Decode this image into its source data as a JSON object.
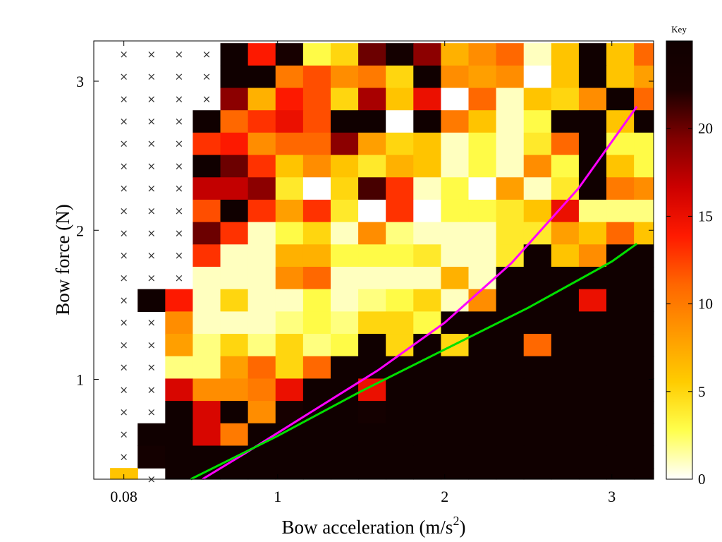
{
  "chart_data": {
    "type": "heatmap",
    "title": "",
    "xlabel_main": "Bow acceleration (m/s",
    "xlabel_sup": "2",
    "xlabel_close": ")",
    "ylabel": "Bow force (N)",
    "x_ticks": [
      {
        "value": 0.08,
        "label": "0.08"
      },
      {
        "value": 1,
        "label": "1"
      },
      {
        "value": 2,
        "label": "2"
      },
      {
        "value": 3,
        "label": "3"
      }
    ],
    "y_ticks": [
      {
        "value": 1,
        "label": "1"
      },
      {
        "value": 2,
        "label": "2"
      },
      {
        "value": 3,
        "label": "3"
      }
    ],
    "xlim": [
      -0.1,
      3.25
    ],
    "ylim": [
      0.33,
      3.27
    ],
    "x_centers": [
      0.08,
      0.245,
      0.41,
      0.575,
      0.74,
      0.905,
      1.07,
      1.235,
      1.4,
      1.565,
      1.73,
      1.895,
      2.06,
      2.225,
      2.39,
      2.555,
      2.72,
      2.885,
      3.05,
      3.215
    ],
    "y_centers": [
      3.18,
      3.03,
      2.88,
      2.73,
      2.58,
      2.43,
      2.28,
      2.13,
      1.98,
      1.83,
      1.68,
      1.53,
      1.38,
      1.23,
      1.08,
      0.93,
      0.78,
      0.63,
      0.48,
      0.33
    ],
    "values": [
      [
        null,
        null,
        null,
        null,
        25,
        14,
        23,
        3,
        5,
        20,
        24,
        19,
        7,
        9,
        11,
        1,
        6,
        25,
        6,
        11
      ],
      [
        null,
        null,
        null,
        null,
        25,
        25,
        10,
        12,
        9,
        10,
        5,
        25,
        9,
        8,
        9,
        0,
        6,
        25,
        6,
        8
      ],
      [
        null,
        null,
        null,
        null,
        19,
        7,
        14,
        12,
        5,
        18,
        6,
        15,
        0,
        11,
        1,
        6,
        5,
        9,
        25,
        11
      ],
      [
        null,
        null,
        null,
        25,
        11,
        13,
        15,
        12,
        25,
        25,
        0,
        25,
        10,
        6,
        1,
        3,
        25,
        25,
        6,
        25
      ],
      [
        null,
        null,
        null,
        13,
        14,
        9,
        11,
        11,
        19,
        8,
        5,
        6,
        1,
        3,
        1,
        4,
        11,
        25,
        3,
        3
      ],
      [
        null,
        null,
        null,
        25,
        20,
        13,
        6,
        9,
        6,
        4,
        7,
        6,
        1,
        3,
        1,
        9,
        3,
        25,
        6,
        3
      ],
      [
        null,
        null,
        null,
        17,
        17,
        19,
        4,
        0,
        5,
        21,
        13,
        1,
        3,
        0,
        8,
        1,
        4,
        25,
        10,
        9
      ],
      [
        null,
        null,
        null,
        12,
        25,
        13,
        8,
        13,
        4,
        0,
        13,
        0,
        3,
        3,
        4,
        6,
        15,
        2,
        2,
        2
      ],
      [
        null,
        null,
        null,
        20,
        13,
        1,
        3,
        5,
        1,
        9,
        2,
        1,
        1,
        1,
        4,
        4,
        8,
        6,
        11,
        6
      ],
      [
        null,
        null,
        null,
        13,
        1,
        1,
        7,
        7,
        3,
        3,
        3,
        4,
        1,
        1,
        4,
        25,
        6,
        9,
        25,
        25
      ],
      [
        null,
        null,
        null,
        1,
        1,
        1,
        9,
        11,
        1,
        1,
        1,
        1,
        7,
        1,
        25,
        25,
        25,
        25,
        25,
        25
      ],
      [
        null,
        25,
        14,
        1,
        5,
        1,
        1,
        3,
        1,
        2,
        3,
        5,
        1,
        9,
        25,
        25,
        25,
        15,
        25,
        25
      ],
      [
        null,
        null,
        9,
        1,
        1,
        1,
        2,
        3,
        2,
        5,
        5,
        3,
        25,
        25,
        25,
        25,
        25,
        25,
        25,
        25
      ],
      [
        null,
        null,
        8,
        2,
        5,
        2,
        5,
        2,
        3,
        25,
        5,
        25,
        5,
        25,
        25,
        11,
        25,
        25,
        25,
        25
      ],
      [
        null,
        null,
        2,
        2,
        8,
        11,
        5,
        11,
        25,
        25,
        25,
        25,
        25,
        25,
        25,
        25,
        25,
        25,
        25,
        25
      ],
      [
        null,
        null,
        16,
        9,
        9,
        10,
        15,
        25,
        25,
        15,
        25,
        25,
        25,
        25,
        25,
        25,
        25,
        25,
        25,
        25
      ],
      [
        null,
        null,
        25,
        16,
        25,
        9,
        23,
        25,
        25,
        24,
        25,
        25,
        25,
        25,
        25,
        25,
        25,
        25,
        25,
        25
      ],
      [
        null,
        25,
        25,
        16,
        10,
        25,
        25,
        25,
        25,
        25,
        25,
        25,
        25,
        25,
        25,
        25,
        25,
        25,
        25,
        25
      ],
      [
        null,
        24,
        25,
        25,
        25,
        25,
        25,
        25,
        25,
        25,
        25,
        25,
        25,
        25,
        25,
        25,
        25,
        25,
        25,
        25
      ],
      [
        6,
        null,
        25,
        25,
        25,
        25,
        25,
        25,
        25,
        25,
        25,
        25,
        25,
        25,
        25,
        25,
        25,
        25,
        25,
        25
      ]
    ],
    "missing_marker": "×",
    "series": [
      {
        "color": "#ff00ff",
        "x": [
          0.55,
          0.8,
          1.2,
          1.6,
          2.0,
          2.4,
          2.8,
          3.15
        ],
        "y": [
          0.33,
          0.5,
          0.78,
          1.06,
          1.38,
          1.78,
          2.28,
          2.83
        ]
      },
      {
        "color": "#00e000",
        "x": [
          0.48,
          1.0,
          1.5,
          2.0,
          2.5,
          3.0,
          3.15
        ],
        "y": [
          0.33,
          0.62,
          0.92,
          1.2,
          1.48,
          1.79,
          1.91
        ]
      }
    ],
    "colorbar": {
      "label": "Key",
      "min": 0,
      "max": 25,
      "ticks": [
        0,
        5,
        10,
        15,
        20
      ],
      "colormap": "hot_reversed",
      "stops": [
        "#ffffff",
        "#ffff4d",
        "#ffcc00",
        "#ff9900",
        "#ff6600",
        "#ff1a00",
        "#cc0000",
        "#800000",
        "#1a0000",
        "#100000"
      ]
    }
  }
}
